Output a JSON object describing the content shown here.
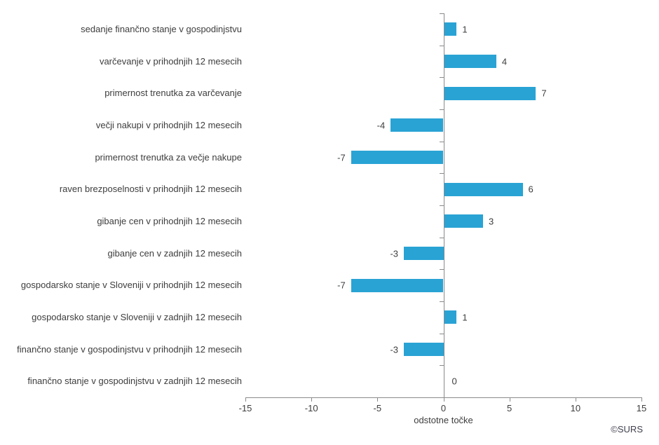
{
  "chart_data": {
    "type": "bar",
    "orientation": "horizontal",
    "title": "",
    "xlabel": "odstotne točke",
    "ylabel": "",
    "xlim": [
      -15,
      15
    ],
    "x_ticks": [
      -15,
      -10,
      -5,
      0,
      5,
      10,
      15
    ],
    "grid": false,
    "legend": false,
    "data_labels": true,
    "categories": [
      "sedanje finančno stanje v gospodinjstvu",
      "varčevanje v prihodnjih 12 mesecih",
      "primernost trenutka za varčevanje",
      "večji nakupi v prihodnjih 12 mesecih",
      "primernost trenutka za večje nakupe",
      "raven brezposelnosti v prihodnjih 12 mesecih",
      "gibanje cen v prihodnjih 12 mesecih",
      "gibanje cen v zadnjih 12 mesecih",
      "gospodarsko stanje v Sloveniji v prihodnjih 12 mesecih",
      "gospodarsko stanje v Sloveniji v zadnjih 12 mesecih",
      "finančno stanje v gospodinjstvu v prihodnjih 12 mesecih",
      "finančno stanje v gospodinjstvu v zadnjih 12 mesecih"
    ],
    "values": [
      1,
      4,
      7,
      -4,
      -7,
      6,
      3,
      -3,
      -7,
      1,
      -3,
      0
    ],
    "colors": {
      "bar": "#29a3d4",
      "axis": "#8a8a8a",
      "text": "#3d3d3d"
    }
  },
  "footer": {
    "copyright": "©SURS"
  }
}
